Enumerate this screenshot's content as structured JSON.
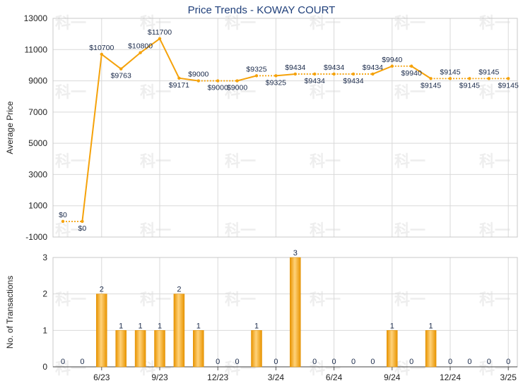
{
  "chart_data": [
    {
      "type": "line",
      "title": "Price Trends - KOWAY COURT",
      "ylabel": "Average Price",
      "ylim": [
        -1000,
        13000
      ],
      "yticks": [
        -1000,
        1000,
        3000,
        5000,
        7000,
        9000,
        11000,
        13000
      ],
      "grid": true,
      "color": "#f5a20a",
      "points": [
        {
          "x": "2023-04",
          "value": 0,
          "label": "$0",
          "solid": false
        },
        {
          "x": "2023-05",
          "value": 0,
          "label": "$0",
          "solid": false
        },
        {
          "x": "2023-06",
          "value": 10700,
          "label": "$10700",
          "solid": true
        },
        {
          "x": "2023-07",
          "value": 9763,
          "label": "$9763",
          "solid": true
        },
        {
          "x": "2023-08",
          "value": 10800,
          "label": "$10800",
          "solid": true
        },
        {
          "x": "2023-09",
          "value": 11700,
          "label": "$11700",
          "solid": true
        },
        {
          "x": "2023-10",
          "value": 9171,
          "label": "$9171",
          "solid": true
        },
        {
          "x": "2023-11",
          "value": 9000,
          "label": "$9000",
          "solid": true
        },
        {
          "x": "2023-12",
          "value": 9000,
          "label": "$9000",
          "solid": false
        },
        {
          "x": "2024-01",
          "value": 9000,
          "label": "$9000",
          "solid": false
        },
        {
          "x": "2024-02",
          "value": 9325,
          "label": "$9325",
          "solid": true
        },
        {
          "x": "2024-03",
          "value": 9325,
          "label": "$9325",
          "solid": false
        },
        {
          "x": "2024-04",
          "value": 9434,
          "label": "$9434",
          "solid": true
        },
        {
          "x": "2024-05",
          "value": 9434,
          "label": "$9434",
          "solid": false
        },
        {
          "x": "2024-06",
          "value": 9434,
          "label": "$9434",
          "solid": false
        },
        {
          "x": "2024-07",
          "value": 9434,
          "label": "$9434",
          "solid": false
        },
        {
          "x": "2024-08",
          "value": 9434,
          "label": "$9434",
          "solid": false
        },
        {
          "x": "2024-09",
          "value": 9940,
          "label": "$9940",
          "solid": true
        },
        {
          "x": "2024-10",
          "value": 9940,
          "label": "$9940",
          "solid": false
        },
        {
          "x": "2024-11",
          "value": 9145,
          "label": "$9145",
          "solid": true
        },
        {
          "x": "2024-12",
          "value": 9145,
          "label": "$9145",
          "solid": false
        },
        {
          "x": "2025-01",
          "value": 9145,
          "label": "$9145",
          "solid": false
        },
        {
          "x": "2025-02",
          "value": 9145,
          "label": "$9145",
          "solid": false
        },
        {
          "x": "2025-03",
          "value": 9145,
          "label": "$9145",
          "solid": false
        }
      ]
    },
    {
      "type": "bar",
      "ylabel": "No. of Transactions",
      "ylim": [
        0,
        3
      ],
      "yticks": [
        0,
        1,
        2,
        3
      ],
      "grid": true,
      "color": "#f5a20a",
      "categories": [
        "2023-04",
        "2023-05",
        "2023-06",
        "2023-07",
        "2023-08",
        "2023-09",
        "2023-10",
        "2023-11",
        "2023-12",
        "2024-01",
        "2024-02",
        "2024-03",
        "2024-04",
        "2024-05",
        "2024-06",
        "2024-07",
        "2024-08",
        "2024-09",
        "2024-10",
        "2024-11",
        "2024-12",
        "2025-01",
        "2025-02",
        "2025-03"
      ],
      "values": [
        0,
        0,
        2,
        1,
        1,
        1,
        2,
        1,
        0,
        0,
        1,
        0,
        3,
        0,
        0,
        0,
        0,
        1,
        0,
        1,
        0,
        0,
        0,
        0
      ],
      "xticks": [
        {
          "index": 2,
          "label": "6/23"
        },
        {
          "index": 5,
          "label": "9/23"
        },
        {
          "index": 8,
          "label": "12/23"
        },
        {
          "index": 11,
          "label": "3/24"
        },
        {
          "index": 14,
          "label": "6/24"
        },
        {
          "index": 17,
          "label": "9/24"
        },
        {
          "index": 20,
          "label": "12/24"
        },
        {
          "index": 23,
          "label": "3/25"
        }
      ]
    }
  ],
  "watermark": "科一"
}
